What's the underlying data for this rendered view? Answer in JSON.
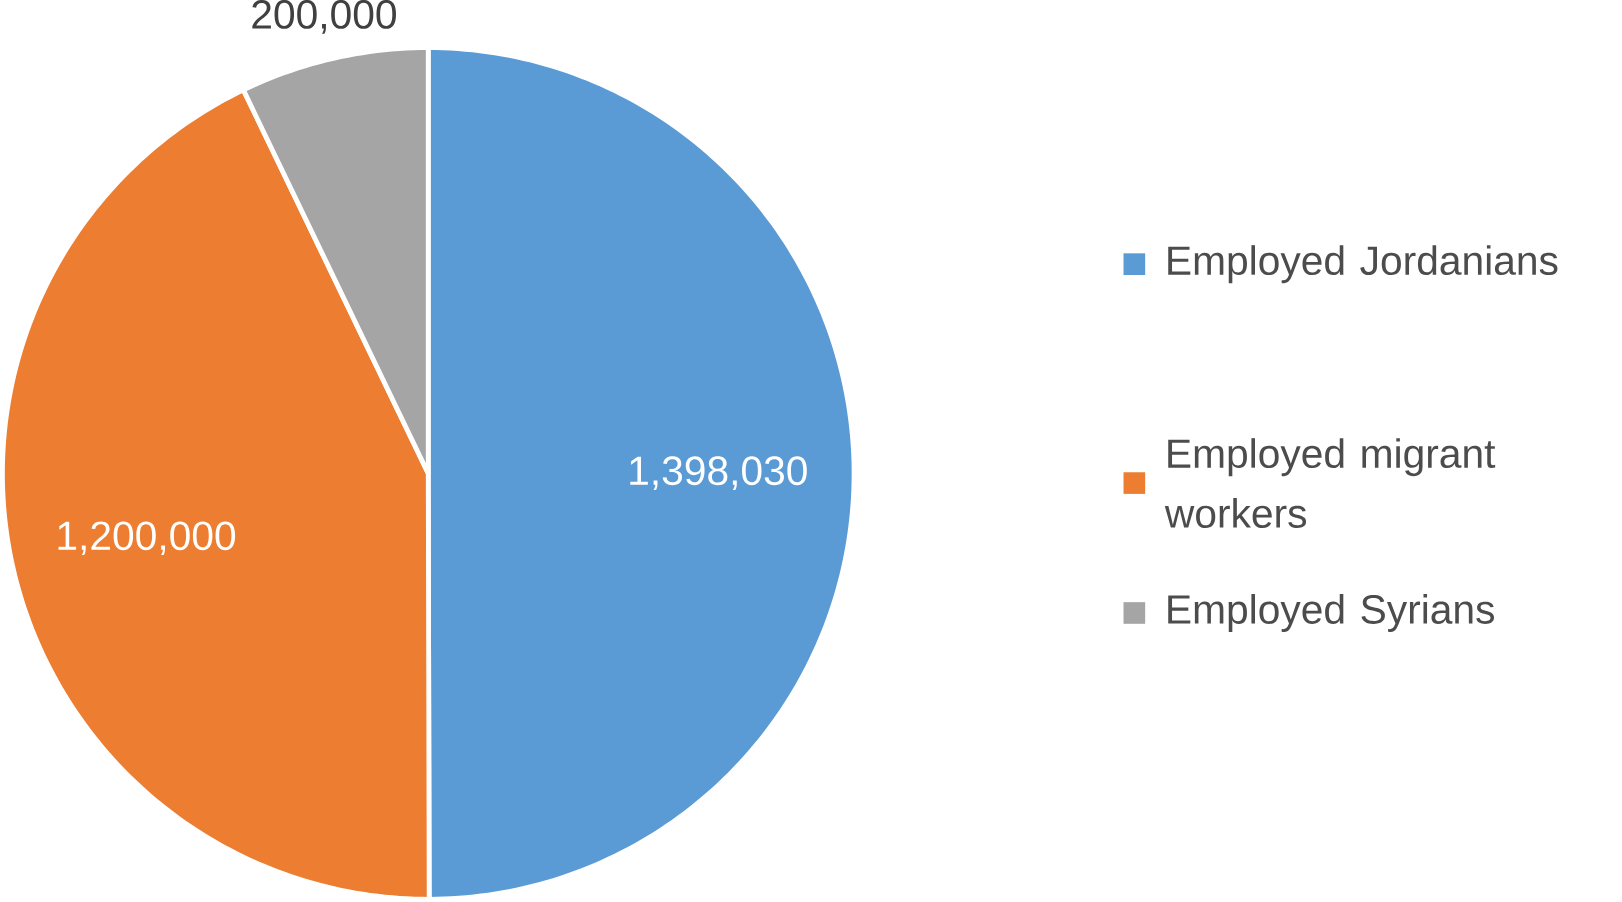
{
  "chart_data": {
    "type": "pie",
    "categories": [
      "Employed Jordanians",
      "Employed migrant workers",
      "Employed Syrians"
    ],
    "values": [
      1398030,
      1200000,
      200000
    ],
    "value_labels": [
      "1,398,030",
      "1,200,000",
      "200,000"
    ],
    "colors": [
      "#5b9bd5",
      "#ed7d31",
      "#a5a5a5"
    ],
    "legend": "right"
  }
}
